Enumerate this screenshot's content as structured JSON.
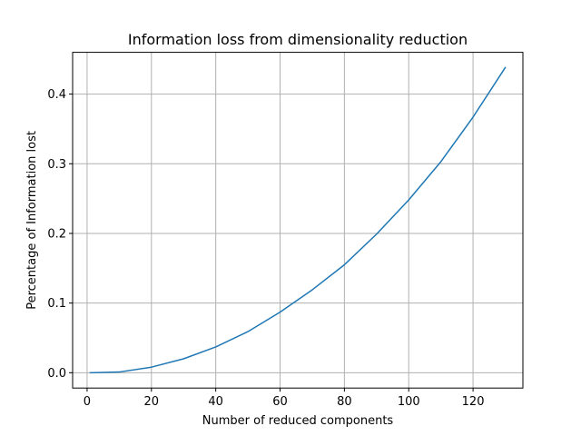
{
  "chart_data": {
    "type": "line",
    "title": "Information loss from dimensionality reduction",
    "xlabel": "Number of reduced components",
    "ylabel": "Percentage of Information lost",
    "xlim": [
      -4.5,
      135.5
    ],
    "ylim": [
      -0.022,
      0.46
    ],
    "xticks": [
      0,
      20,
      40,
      60,
      80,
      100,
      120
    ],
    "xtick_labels": [
      "0",
      "20",
      "40",
      "60",
      "80",
      "100",
      "120"
    ],
    "yticks": [
      0.0,
      0.1,
      0.2,
      0.3,
      0.4
    ],
    "ytick_labels": [
      "0.0",
      "0.1",
      "0.2",
      "0.3",
      "0.4"
    ],
    "grid": true,
    "colors": {
      "line": "#1f77b4"
    },
    "series": [
      {
        "x": [
          1,
          10,
          20,
          30,
          40,
          50,
          60,
          70,
          80,
          90,
          100,
          110,
          120,
          130
        ],
        "values": [
          0.0,
          0.001,
          0.008,
          0.02,
          0.037,
          0.059,
          0.087,
          0.119,
          0.155,
          0.199,
          0.248,
          0.303,
          0.367,
          0.438
        ]
      }
    ]
  }
}
